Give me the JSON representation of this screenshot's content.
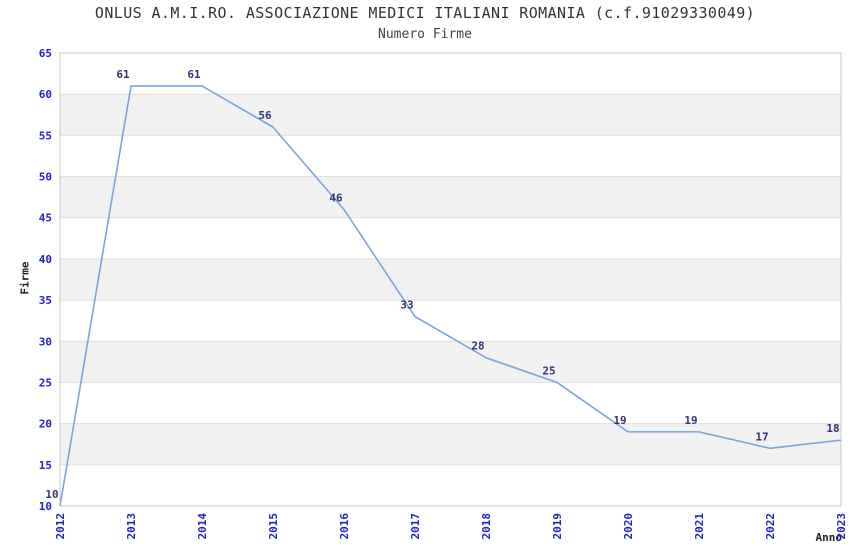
{
  "chart_data": {
    "type": "line",
    "title": "ONLUS A.M.I.RO. ASSOCIAZIONE MEDICI ITALIANI ROMANIA (c.f.91029330049)",
    "subtitle": "Numero Firme",
    "xlabel": "Anno",
    "ylabel": "Firme",
    "categories": [
      "2012",
      "2013",
      "2014",
      "2015",
      "2016",
      "2017",
      "2018",
      "2019",
      "2020",
      "2021",
      "2022",
      "2023"
    ],
    "values": [
      10,
      61,
      61,
      56,
      46,
      33,
      28,
      25,
      19,
      19,
      17,
      18
    ],
    "ylim": [
      10,
      65
    ],
    "ytick_step": 5,
    "grid": "horizontal-gridlines-with-alternating-bands",
    "legend": "none",
    "colors": {
      "line": "#79a5dc",
      "tick_label": "#2222cc",
      "point_label": "#333377",
      "band_fill": "#f1f1f1",
      "grid_line": "#e0e0e0",
      "border": "#c8c8c8",
      "title": "#333333",
      "subtitle": "#444444",
      "axis_title": "#222222",
      "background": "#ffffff"
    }
  }
}
